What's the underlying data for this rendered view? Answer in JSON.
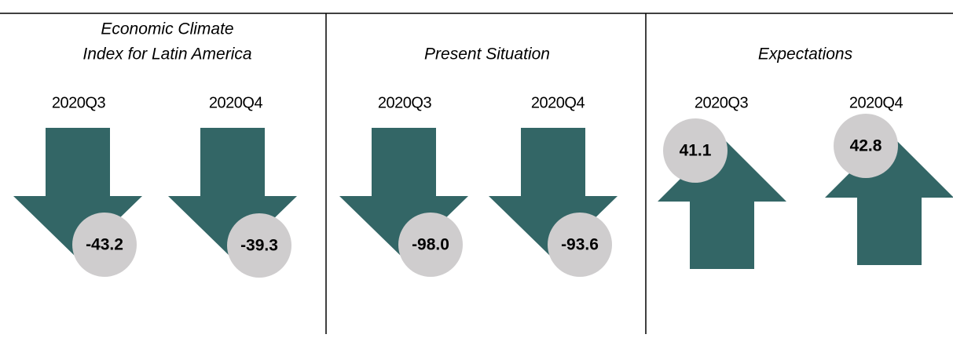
{
  "panels": [
    {
      "title": [
        "Economic Climate",
        "Index for Latin America"
      ],
      "items": [
        {
          "period": "2020Q3",
          "value": "-43.2"
        },
        {
          "period": "2020Q4",
          "value": "-39.3"
        }
      ]
    },
    {
      "title": [
        "Present Situation"
      ],
      "items": [
        {
          "period": "2020Q3",
          "value": "-98.0"
        },
        {
          "period": "2020Q4",
          "value": "-93.6"
        }
      ]
    },
    {
      "title": [
        "Expectations"
      ],
      "items": [
        {
          "period": "2020Q3",
          "value": "41.1"
        },
        {
          "period": "2020Q4",
          "value": "42.8"
        }
      ]
    }
  ]
}
